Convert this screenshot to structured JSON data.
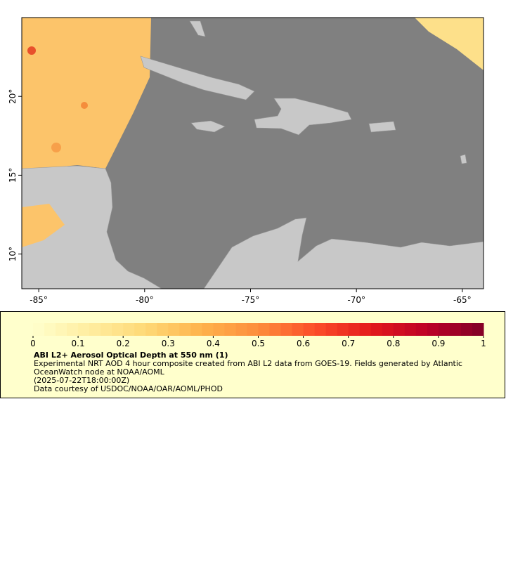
{
  "map": {
    "xlim": [
      -85.8,
      -64
    ],
    "ylim": [
      7.8,
      25
    ],
    "xticks": [
      {
        "value": -85,
        "label": "-85°"
      },
      {
        "value": -80,
        "label": "-80°"
      },
      {
        "value": -75,
        "label": "-75°"
      },
      {
        "value": -70,
        "label": "-70°"
      },
      {
        "value": -65,
        "label": "-65°"
      }
    ],
    "yticks": [
      {
        "value": 10,
        "label": "10°"
      },
      {
        "value": 15,
        "label": "15°"
      },
      {
        "value": 20,
        "label": "20°"
      }
    ]
  },
  "legend": {
    "title": "ABI L2+ Aerosol Optical Depth at 550 nm (1)",
    "description": "Experimental NRT AOD 4 hour composite created from ABI L2 data from GOES-19. Fields generated by Atlantic OceanWatch node at NOAA/AOML",
    "time": "(2025-07-22T18:00:00Z)",
    "credit": "Data courtesy of USDOC/NOAA/OAR/AOML/PHOD",
    "colorbar": {
      "lim": [
        0,
        1
      ],
      "ticks": [
        0,
        0.1,
        0.2,
        0.3,
        0.4,
        0.5,
        0.6,
        0.7,
        0.8,
        0.9,
        1
      ],
      "colors": [
        "#ffffcc",
        "#ffeda0",
        "#fed976",
        "#feb24c",
        "#fd8d3c",
        "#fc4e2a",
        "#e31a1c",
        "#bd0026",
        "#800026"
      ]
    }
  }
}
